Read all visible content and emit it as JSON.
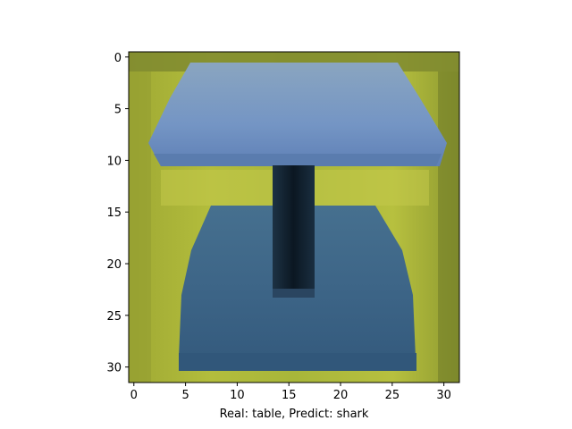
{
  "image": {
    "subject": "pixelated-table",
    "grid": {
      "cols": 32,
      "rows": 32
    },
    "colors": {
      "background_yellow": "#a9b536",
      "background_dark": "#6f7a2a",
      "tabletop_light": "#8aa5c0",
      "tabletop_mid": "#6f8fc0",
      "tabletop_edge": "#5d7fb0",
      "leg_dark": "#0d1a26",
      "leg_mid": "#1d3244",
      "base_blue": "#3f6688",
      "base_dark": "#35597a"
    }
  },
  "axes": {
    "x_ticks": [
      "0",
      "5",
      "10",
      "15",
      "20",
      "25",
      "30"
    ],
    "y_ticks": [
      "0",
      "5",
      "10",
      "15",
      "20",
      "25",
      "30"
    ],
    "xlabel": "Real: table, Predict: shark"
  }
}
